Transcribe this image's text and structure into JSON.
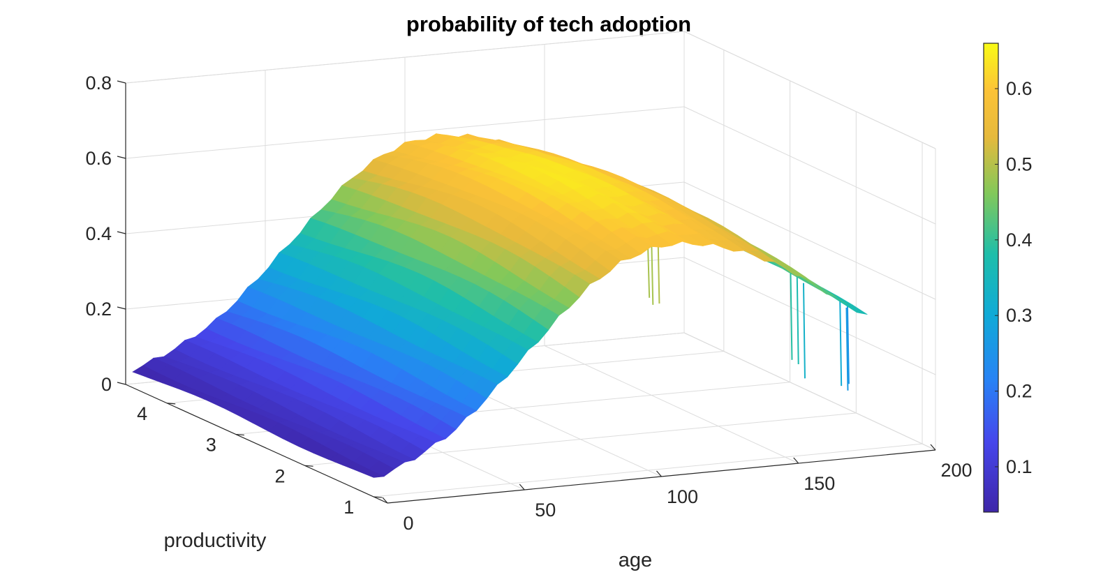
{
  "chart_data": {
    "type": "surface",
    "title": "probability of tech adoption",
    "xlabel": "age",
    "ylabel": "productivity",
    "zlabel": "",
    "xlim": [
      0,
      200
    ],
    "ylim": [
      0.8,
      4.6
    ],
    "zlim": [
      0,
      0.8
    ],
    "xticks": [
      0,
      50,
      100,
      150,
      200
    ],
    "yticks": [
      1,
      2,
      3,
      4
    ],
    "zticks": [
      0,
      0.2,
      0.4,
      0.6,
      0.8
    ],
    "xtick_labels": [
      "0",
      "50",
      "100",
      "150",
      "200"
    ],
    "ytick_labels": [
      "1",
      "2",
      "3",
      "4"
    ],
    "ztick_labels": [
      "0",
      "0.2",
      "0.4",
      "0.6",
      "0.8"
    ],
    "colorbar": {
      "range": [
        0.04,
        0.66
      ],
      "ticks": [
        0.1,
        0.2,
        0.3,
        0.4,
        0.5,
        0.6
      ],
      "tick_labels": [
        "0.1",
        "0.2",
        "0.3",
        "0.4",
        "0.5",
        "0.6"
      ],
      "colormap": "parula"
    },
    "surface_profile_by_age": {
      "age": [
        0,
        10,
        20,
        30,
        40,
        50,
        60,
        70,
        80,
        90,
        100,
        110,
        120,
        130,
        140,
        150,
        160,
        170,
        180
      ],
      "probability": [
        0.05,
        0.08,
        0.12,
        0.17,
        0.24,
        0.32,
        0.4,
        0.48,
        0.55,
        0.6,
        0.63,
        0.64,
        0.63,
        0.61,
        0.58,
        0.54,
        0.49,
        0.43,
        0.38
      ]
    },
    "productivity_range": [
      1,
      4.5
    ],
    "grid": true
  }
}
